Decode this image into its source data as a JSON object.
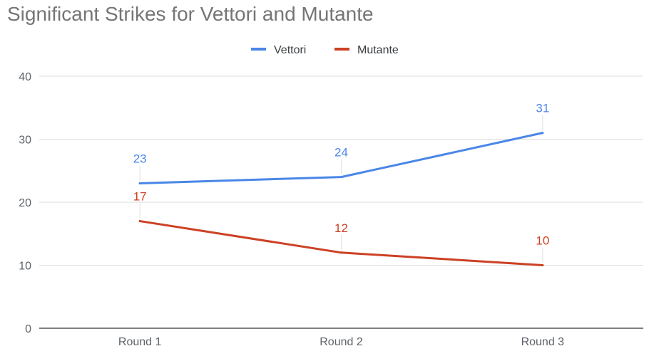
{
  "chart_data": {
    "type": "line",
    "title": "Significant Strikes for Vettori and Mutante",
    "categories": [
      "Round 1",
      "Round 2",
      "Round 3"
    ],
    "series": [
      {
        "name": "Vettori",
        "values": [
          23,
          24,
          31
        ],
        "color": "#4a86e8"
      },
      {
        "name": "Mutante",
        "values": [
          17,
          12,
          10
        ],
        "color": "#cc4125"
      }
    ],
    "xlabel": "",
    "ylabel": "",
    "ylim": [
      0,
      40
    ],
    "yticks": [
      0,
      10,
      20,
      30,
      40
    ],
    "grid": true,
    "legend_position": "top-center",
    "data_labels": true
  }
}
